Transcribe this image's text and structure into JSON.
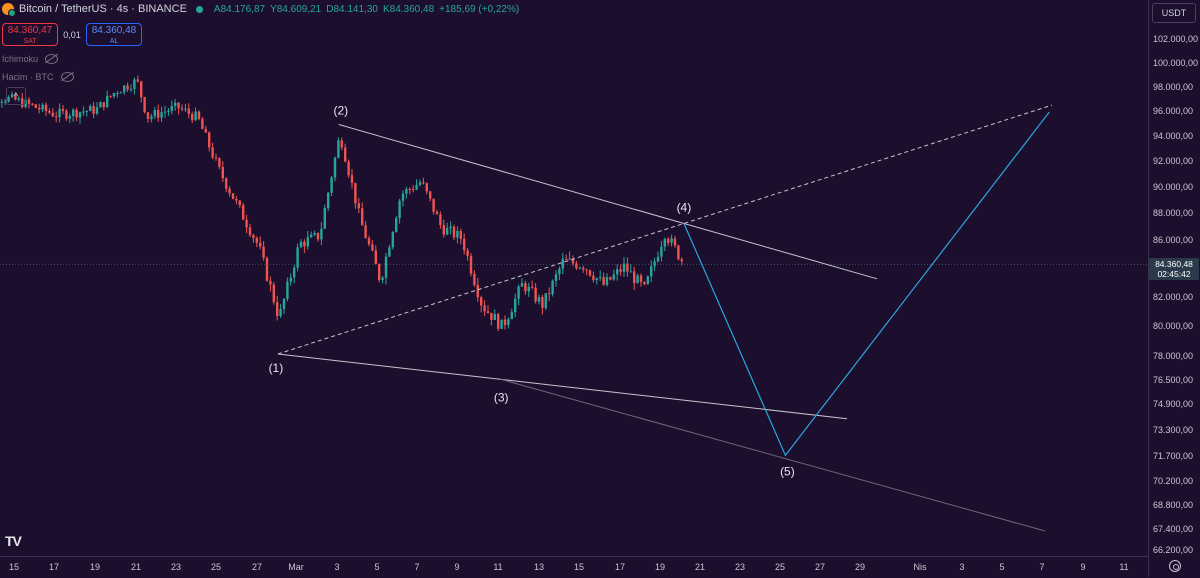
{
  "header": {
    "title": "Bitcoin / TetherUS · 4s · BINANCE",
    "open": "A84.176,87",
    "high": "Y84.609,21",
    "low": "D84.141,30",
    "close": "K84.360,48",
    "change": "+185,69 (+0,22%)"
  },
  "trade": {
    "sell_price": "84.360,47",
    "sell_label": "SAT",
    "spread": "0,01",
    "buy_price": "84.360,48",
    "buy_label": "AL"
  },
  "indicators": [
    "Ichimoku",
    "Hacim · BTC"
  ],
  "currency": "USDT",
  "last_price": {
    "value": "84.360,48",
    "countdown": "02:45:42"
  },
  "logo_text": "TV",
  "colors": {
    "up": "#26a69a",
    "down": "#ef5350",
    "projection": "#29a6e0",
    "trendline": "#c8c4cf",
    "background": "#1c0f2e"
  },
  "chart_data": {
    "type": "candlestick",
    "x_axis_labels": [
      "15",
      "17",
      "19",
      "21",
      "23",
      "25",
      "27",
      "Mar",
      "3",
      "5",
      "7",
      "9",
      "11",
      "13",
      "15",
      "17",
      "19",
      "21",
      "23",
      "25",
      "27",
      "29",
      "Nis",
      "3",
      "5",
      "7",
      "9",
      "11"
    ],
    "y_axis_labels": [
      "102.000,00",
      "100.000,00",
      "98.000,00",
      "96.000,00",
      "94.000,00",
      "92.000,00",
      "90.000,00",
      "88.000,00",
      "86.000,00",
      "82.000,00",
      "80.000,00",
      "78.000,00",
      "76.500,00",
      "74.900,00",
      "73.300,00",
      "71.700,00",
      "70.200,00",
      "68.800,00",
      "67.400,00",
      "66.200,00"
    ],
    "price_path": [
      {
        "date": "2025-02-13",
        "price": 97600
      },
      {
        "date": "2025-02-15",
        "price": 97000
      },
      {
        "date": "2025-02-17",
        "price": 95800
      },
      {
        "date": "2025-02-19",
        "price": 96200
      },
      {
        "date": "2025-02-20",
        "price": 97800
      },
      {
        "date": "2025-02-21",
        "price": 98600
      },
      {
        "date": "2025-02-21T12",
        "price": 95600
      },
      {
        "date": "2025-02-23",
        "price": 96400
      },
      {
        "date": "2025-02-24",
        "price": 95500
      },
      {
        "date": "2025-02-25",
        "price": 91500
      },
      {
        "date": "2025-02-26",
        "price": 88500
      },
      {
        "date": "2025-02-27",
        "price": 85600
      },
      {
        "date": "2025-02-28",
        "price": 80600
      },
      {
        "date": "2025-03-01",
        "price": 85800
      },
      {
        "date": "2025-03-02",
        "price": 86400
      },
      {
        "date": "2025-03-03",
        "price": 94200
      },
      {
        "date": "2025-03-04",
        "price": 87500
      },
      {
        "date": "2025-03-05",
        "price": 83200
      },
      {
        "date": "2025-03-06",
        "price": 89500
      },
      {
        "date": "2025-03-07",
        "price": 90500
      },
      {
        "date": "2025-03-08",
        "price": 87000
      },
      {
        "date": "2025-03-09",
        "price": 86200
      },
      {
        "date": "2025-03-10",
        "price": 81500
      },
      {
        "date": "2025-03-11",
        "price": 80000
      },
      {
        "date": "2025-03-12",
        "price": 83000
      },
      {
        "date": "2025-03-13",
        "price": 81500
      },
      {
        "date": "2025-03-14",
        "price": 84600
      },
      {
        "date": "2025-03-15",
        "price": 84300
      },
      {
        "date": "2025-03-16",
        "price": 82900
      },
      {
        "date": "2025-03-17",
        "price": 84200
      },
      {
        "date": "2025-03-18",
        "price": 82600
      },
      {
        "date": "2025-03-19",
        "price": 86600
      },
      {
        "date": "2025-03-20",
        "price": 84300
      }
    ],
    "elliott_points": [
      {
        "label": "(1)",
        "date": "2025-02-28",
        "price": 78200
      },
      {
        "label": "(2)",
        "date": "2025-03-03",
        "price": 95000
      },
      {
        "label": "(3)",
        "date": "2025-03-11",
        "price": 76600
      },
      {
        "label": "(4)",
        "date": "2025-03-20",
        "price": 87300
      },
      {
        "label": "(5)",
        "date": "2025-03-25",
        "price": 71800
      }
    ],
    "projection": [
      {
        "date": "2025-03-20",
        "price": 87300
      },
      {
        "date": "2025-03-25",
        "price": 71800
      },
      {
        "date": "2025-04-07",
        "price": 96000
      }
    ],
    "last_price": 84360.48
  }
}
